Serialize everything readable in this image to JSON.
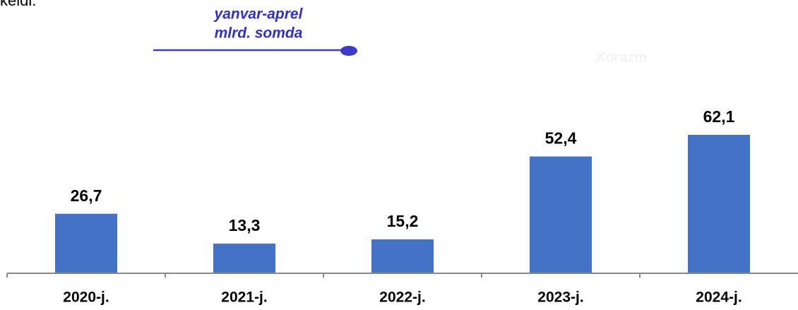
{
  "chart_data": {
    "type": "bar",
    "header_text": "keldi.",
    "annotation": [
      "yanvar-aprel",
      "mlrd. somda"
    ],
    "watermark": "Xorazm",
    "categories": [
      "2020-j.",
      "2021-j.",
      "2022-j.",
      "2023-j.",
      "2024-j."
    ],
    "values": [
      26.7,
      13.3,
      15.2,
      52.4,
      62.1
    ],
    "value_labels": [
      "26,7",
      "13,3",
      "15,2",
      "52,4",
      "62,1"
    ],
    "color": "#4472c4",
    "ylim": [
      0,
      70
    ]
  }
}
